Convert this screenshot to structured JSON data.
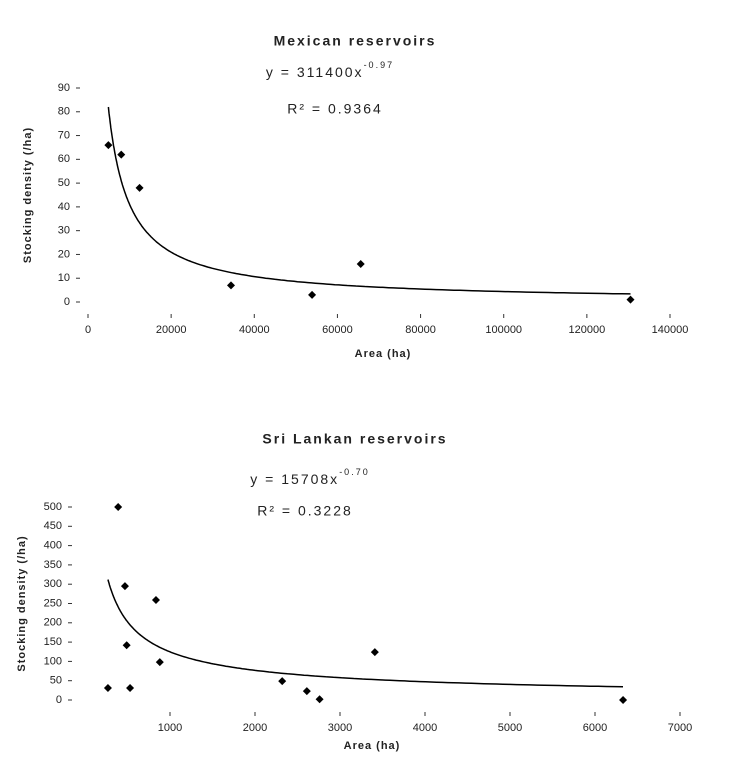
{
  "chart_data": [
    {
      "type": "scatter",
      "title": "Mexican reservoirs",
      "equation": "y = 311400x",
      "equation_exponent": "-0.97",
      "r_squared": "R² = 0.9364",
      "x_label": "Area (ha)",
      "y_label": "Stocking density (/ha)",
      "x": [
        4900,
        8000,
        12400,
        34400,
        53900,
        65600,
        130500
      ],
      "values": [
        66,
        62,
        48,
        7,
        3,
        16,
        1
      ],
      "color": "#000000",
      "trendline": "power",
      "xlim": [
        0,
        140000
      ],
      "ylim": [
        0,
        90
      ],
      "xticks": [
        0,
        20000,
        40000,
        60000,
        80000,
        100000,
        120000,
        140000
      ],
      "yticks": [
        0,
        10,
        20,
        30,
        40,
        50,
        60,
        70,
        80,
        90
      ]
    },
    {
      "type": "scatter",
      "title": "Sri Lankan reservoirs",
      "equation": "y = 15708x",
      "equation_exponent": "-0.70",
      "r_squared": "R² = 0.3228",
      "x_label": "Area (ha)",
      "y_label": "Stocking density (/ha)",
      "x": [
        270,
        390,
        470,
        490,
        530,
        835,
        880,
        2320,
        2610,
        2760,
        3410,
        6330
      ],
      "values": [
        31,
        500,
        295,
        142,
        31,
        259,
        98,
        49,
        23,
        2,
        124,
        0
      ],
      "color": "#000000",
      "trendline": "power",
      "xlim": [
        0,
        7000
      ],
      "ylim": [
        0,
        500
      ],
      "xticks": [
        1000,
        2000,
        3000,
        4000,
        5000,
        6000,
        7000
      ],
      "yticks": [
        0,
        50,
        100,
        150,
        200,
        250,
        300,
        350,
        400,
        450,
        500
      ]
    }
  ]
}
